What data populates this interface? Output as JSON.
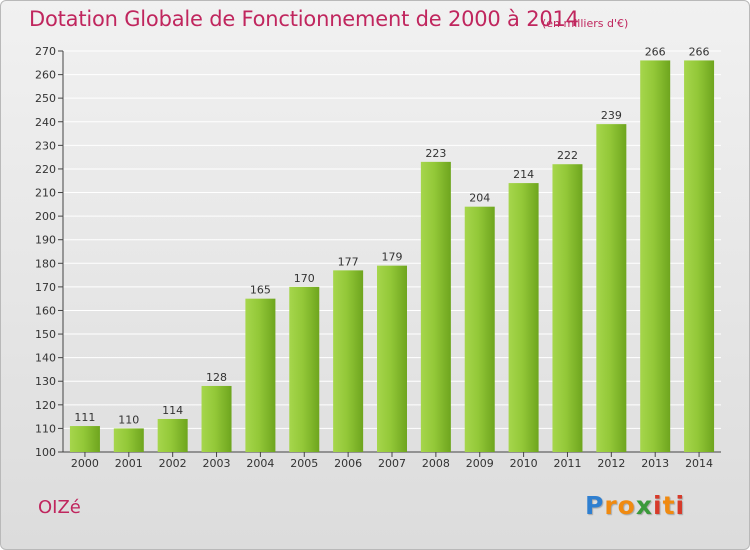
{
  "header": {
    "title": "Dotation Globale de Fonctionnement de 2000 à 2014",
    "subtitle": "(en milliers d'€)"
  },
  "footer": {
    "commune": "OIZé",
    "logo_text": "Proxiti"
  },
  "colors": {
    "title": "#c0265e",
    "bar_light": "#9fd045",
    "bar_dark": "#6ea51e",
    "grid": "#ffffff",
    "axis": "#333333",
    "logo": [
      "#2f7fd0",
      "#f08a10",
      "#3a9a3a",
      "#d73a2a"
    ]
  },
  "chart_data": {
    "type": "bar",
    "title": "Dotation Globale de Fonctionnement de 2000 à 2014",
    "subtitle": "(en milliers d'€)",
    "categories": [
      "2000",
      "2001",
      "2002",
      "2003",
      "2004",
      "2005",
      "2006",
      "2007",
      "2008",
      "2009",
      "2010",
      "2011",
      "2012",
      "2013",
      "2014"
    ],
    "values": [
      111,
      110,
      114,
      128,
      165,
      170,
      177,
      179,
      223,
      204,
      214,
      222,
      239,
      266,
      266
    ],
    "ylim": [
      100,
      270
    ],
    "yticks": [
      100,
      110,
      120,
      130,
      140,
      150,
      160,
      170,
      180,
      190,
      200,
      210,
      220,
      230,
      240,
      250,
      260,
      270
    ],
    "grid": true,
    "xlabel": "",
    "ylabel": ""
  }
}
